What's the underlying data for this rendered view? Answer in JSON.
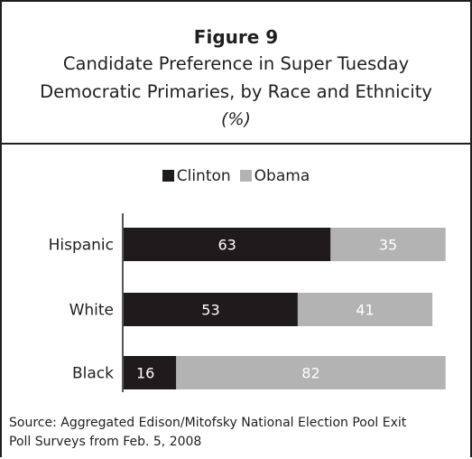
{
  "header": {
    "figure_label": "Figure 9",
    "title_line1": "Candidate Preference in Super Tuesday",
    "title_line2": "Democratic Primaries, by Race and Ethnicity",
    "unit": "(%)"
  },
  "source": {
    "line1": "Source: Aggregated Edison/Mitofsky National Election Pool Exit",
    "line2": "Poll Surveys from Feb. 5, 2008"
  },
  "colors": {
    "clinton": "#1f1a1b",
    "obama": "#b3b3b3",
    "text": "#1f1f1f",
    "clinton_label": "#ffffff",
    "obama_label": "#ffffff"
  },
  "chart_data": {
    "type": "bar",
    "orientation": "horizontal",
    "stacked": true,
    "categories": [
      "Hispanic",
      "White",
      "Black"
    ],
    "series": [
      {
        "name": "Clinton",
        "values": [
          63,
          53,
          16
        ]
      },
      {
        "name": "Obama",
        "values": [
          35,
          41,
          82
        ]
      }
    ],
    "xlim": [
      0,
      100
    ],
    "grid": false,
    "legend_placement": "top-center",
    "data_labels": true
  }
}
